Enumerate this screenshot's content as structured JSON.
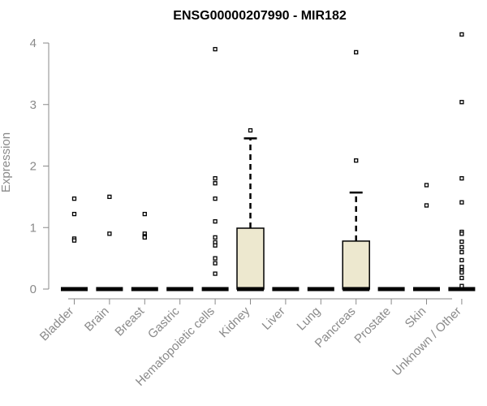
{
  "chart_data": {
    "type": "boxplot",
    "title": "ENSG00000207990 - MIR182",
    "xlabel": "",
    "ylabel": "Expression",
    "ylim": [
      0,
      4.2
    ],
    "yticks": [
      0,
      1,
      2,
      3,
      4
    ],
    "grid": false,
    "box_color": "#ede8cf",
    "categories": [
      "Bladder",
      "Brain",
      "Breast",
      "Gastric",
      "Hematopoietic cells",
      "Kidney",
      "Liver",
      "Lung",
      "Pancreas",
      "Prostate",
      "Skin",
      "Unknown / Other"
    ],
    "boxes": [
      {
        "category": "Bladder",
        "q1": 0,
        "median": 0,
        "q3": 0,
        "whisker_high": 0,
        "outliers": [
          1.47,
          1.22,
          0.82,
          0.79
        ]
      },
      {
        "category": "Brain",
        "q1": 0,
        "median": 0,
        "q3": 0,
        "whisker_high": 0,
        "outliers": [
          1.5,
          0.9
        ]
      },
      {
        "category": "Breast",
        "q1": 0,
        "median": 0,
        "q3": 0,
        "whisker_high": 0,
        "outliers": [
          1.22,
          0.9,
          0.86,
          0.84
        ]
      },
      {
        "category": "Gastric",
        "q1": 0,
        "median": 0,
        "q3": 0,
        "whisker_high": 0,
        "outliers": []
      },
      {
        "category": "Hematopoietic cells",
        "q1": 0,
        "median": 0,
        "q3": 0,
        "whisker_high": 0,
        "outliers": [
          3.9,
          1.8,
          1.72,
          1.47,
          1.1,
          0.84,
          0.76,
          0.71,
          0.5,
          0.42,
          0.25
        ]
      },
      {
        "category": "Kidney",
        "q1": 0,
        "median": 0,
        "q3": 0.99,
        "whisker_high": 2.45,
        "outliers": [
          2.58
        ]
      },
      {
        "category": "Liver",
        "q1": 0,
        "median": 0,
        "q3": 0,
        "whisker_high": 0,
        "outliers": []
      },
      {
        "category": "Lung",
        "q1": 0,
        "median": 0,
        "q3": 0,
        "whisker_high": 0,
        "outliers": []
      },
      {
        "category": "Pancreas",
        "q1": 0,
        "median": 0,
        "q3": 0.78,
        "whisker_high": 1.57,
        "outliers": [
          3.85,
          2.09
        ]
      },
      {
        "category": "Prostate",
        "q1": 0,
        "median": 0,
        "q3": 0,
        "whisker_high": 0,
        "outliers": []
      },
      {
        "category": "Skin",
        "q1": 0,
        "median": 0,
        "q3": 0,
        "whisker_high": 0,
        "outliers": [
          1.69,
          1.36
        ]
      },
      {
        "category": "Unknown / Other",
        "q1": 0,
        "median": 0,
        "q3": 0,
        "whisker_high": 0,
        "outliers": [
          4.14,
          3.04,
          1.8,
          1.41,
          0.93,
          0.9,
          0.77,
          0.68,
          0.6,
          0.47,
          0.36,
          0.3,
          0.27,
          0.18,
          0.05
        ]
      }
    ]
  }
}
